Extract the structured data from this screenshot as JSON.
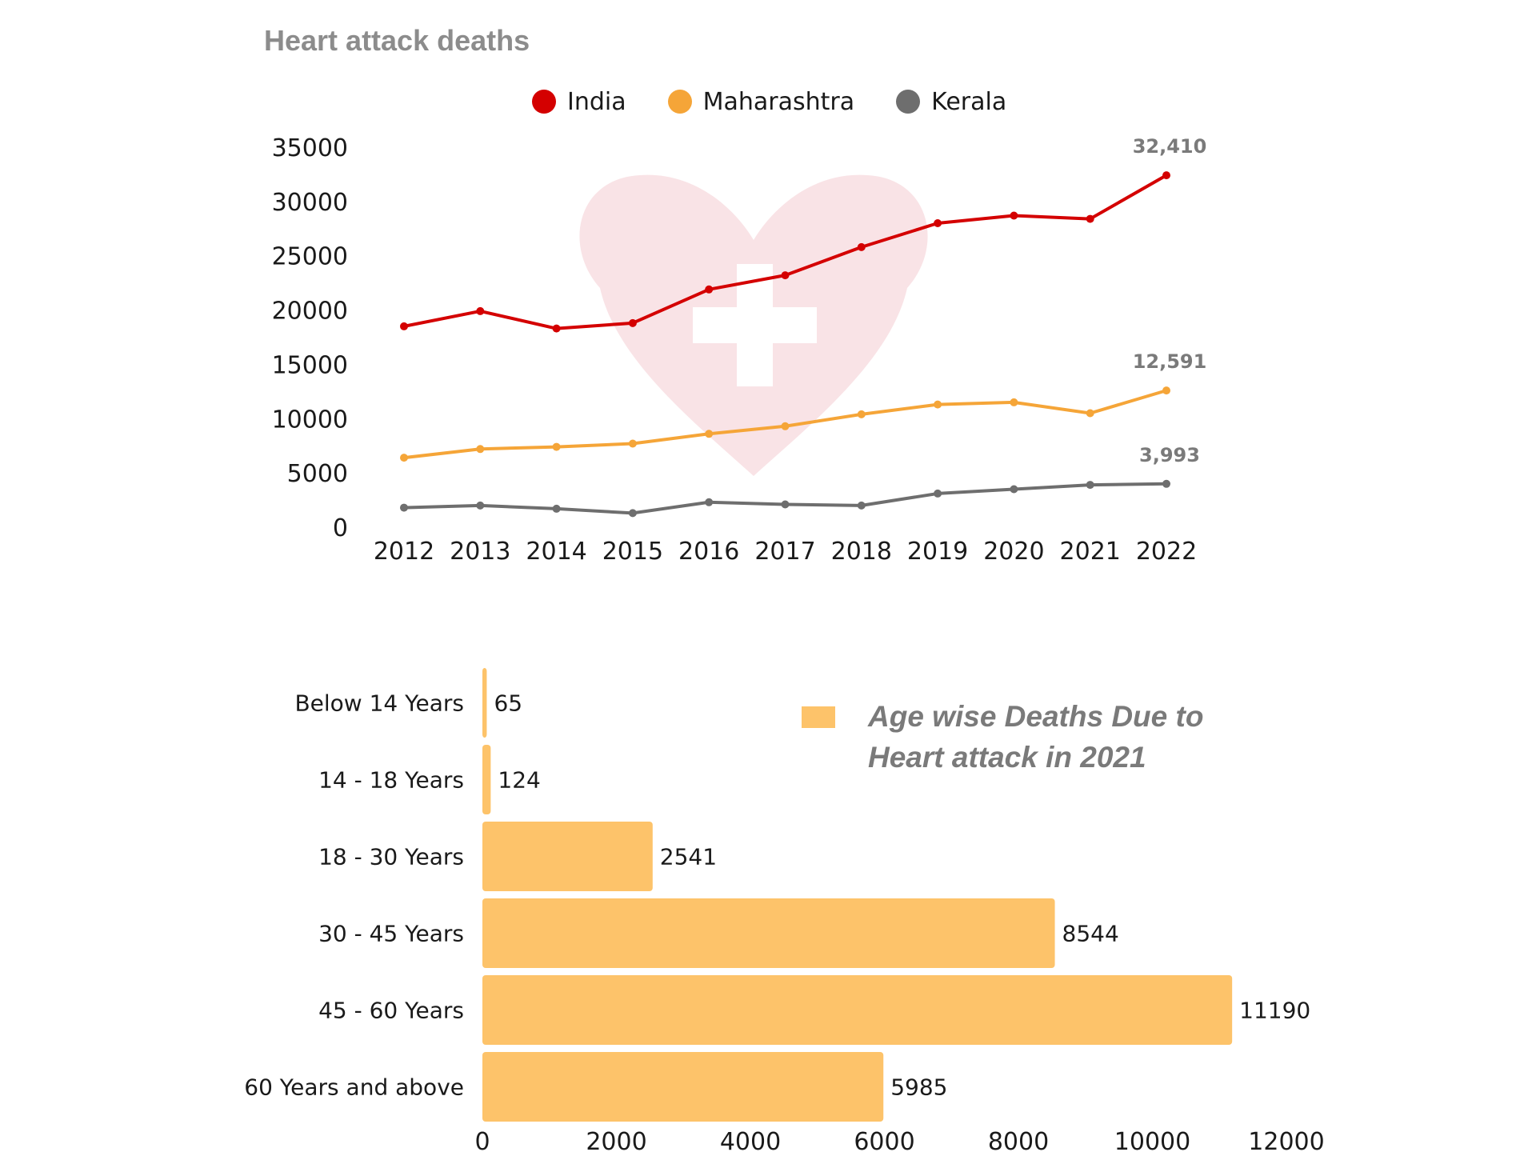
{
  "colors": {
    "india": "#d40000",
    "maharashtra": "#f5a538",
    "kerala": "#6e6e6e",
    "bars": "#fdc36a",
    "heart": "#f9e3e6",
    "title": "#8c8c8c",
    "annotation": "#7a7a7a"
  },
  "watermark_icon": "heart-with-cross-icon",
  "chart_data": [
    {
      "type": "line",
      "title": "Heart attack deaths",
      "x": [
        "2012",
        "2013",
        "2014",
        "2015",
        "2016",
        "2017",
        "2018",
        "2019",
        "2020",
        "2021",
        "2022"
      ],
      "series": [
        {
          "name": "India",
          "values": [
            18500,
            19900,
            18300,
            18800,
            21900,
            23200,
            25800,
            28000,
            28700,
            28400,
            32410
          ]
        },
        {
          "name": "Maharashtra",
          "values": [
            6400,
            7200,
            7400,
            7700,
            8600,
            9300,
            10400,
            11300,
            11500,
            10500,
            12591
          ]
        },
        {
          "name": "Kerala",
          "values": [
            1800,
            2000,
            1700,
            1300,
            2300,
            2100,
            2000,
            3100,
            3500,
            3900,
            3993
          ]
        }
      ],
      "ylim": [
        0,
        35000
      ],
      "yticks": [
        "35000",
        "30000",
        "25000",
        "20000",
        "15000",
        "10000",
        "5000",
        "0"
      ],
      "end_labels": [
        "32,410",
        "12,591",
        "3,993"
      ],
      "legend": "top",
      "grid": false
    },
    {
      "type": "bar",
      "orientation": "horizontal",
      "title": "Age wise Deaths Due to Heart attack in 2021",
      "categories": [
        "Below 14 Years",
        "14 - 18 Years",
        "18 - 30 Years",
        "30 - 45 Years",
        "45 - 60 Years",
        "60 Years and above"
      ],
      "values": [
        65,
        124,
        2541,
        8544,
        11190,
        5985
      ],
      "value_labels": [
        "65",
        "124",
        "2541",
        "8544",
        "11190",
        "5985"
      ],
      "xlim": [
        0,
        12000
      ],
      "xticks": [
        "0",
        "2000",
        "4000",
        "6000",
        "8000",
        "10000",
        "12000"
      ],
      "legend": "top-right",
      "grid": false
    }
  ]
}
